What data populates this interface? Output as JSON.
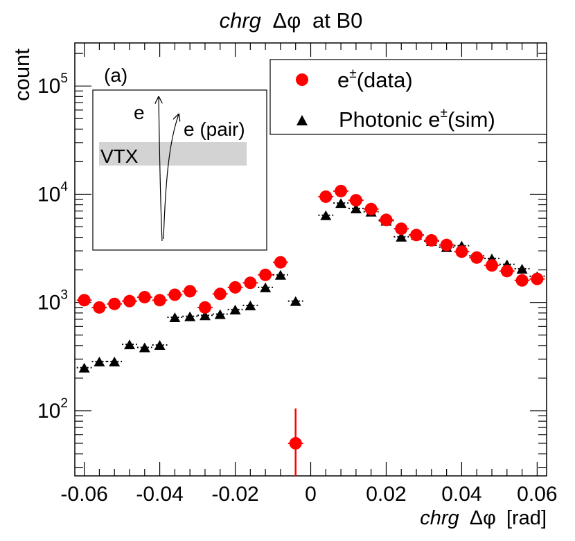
{
  "chart_data": {
    "type": "scatter",
    "title": {
      "italic": "chrg",
      "symbol": "Δφ",
      "rest": "at B0"
    },
    "xlabel": {
      "italic": "chrg",
      "symbol": "Δφ",
      "unit": "[rad]"
    },
    "ylabel": "count",
    "yscale": "log",
    "xlim": [
      -0.0625,
      0.0625
    ],
    "ylim": [
      25,
      250000
    ],
    "x_ticks": [
      {
        "value": -0.06,
        "label": "-0.06"
      },
      {
        "value": -0.04,
        "label": "-0.04"
      },
      {
        "value": -0.02,
        "label": "-0.02"
      },
      {
        "value": 0,
        "label": "0"
      },
      {
        "value": 0.02,
        "label": "0.02"
      },
      {
        "value": 0.04,
        "label": "0.04"
      },
      {
        "value": 0.06,
        "label": "0.06"
      }
    ],
    "y_ticks": [
      {
        "value": 100,
        "base": "10",
        "exp": "2"
      },
      {
        "value": 1000,
        "base": "10",
        "exp": "3"
      },
      {
        "value": 10000,
        "base": "10",
        "exp": "4"
      },
      {
        "value": 100000,
        "base": "10",
        "exp": "5"
      }
    ],
    "bin_half_width": 0.002,
    "series": [
      {
        "name": "e±(data)",
        "legend": {
          "base": "e",
          "sup": "±",
          "text": "(data)"
        },
        "marker": "circle",
        "color": "#ff0000",
        "x": [
          -0.06,
          -0.056,
          -0.052,
          -0.048,
          -0.044,
          -0.04,
          -0.036,
          -0.032,
          -0.028,
          -0.024,
          -0.02,
          -0.016,
          -0.012,
          -0.008,
          -0.004,
          0.0,
          0.004,
          0.008,
          0.012,
          0.016,
          0.02,
          0.024,
          0.028,
          0.032,
          0.036,
          0.04,
          0.044,
          0.048,
          0.052,
          0.056,
          0.06
        ],
        "y": [
          1050,
          900,
          970,
          1030,
          1120,
          1050,
          1180,
          1270,
          900,
          1200,
          1380,
          1520,
          1800,
          2350,
          50,
          null,
          9500,
          10700,
          8800,
          7300,
          5800,
          4800,
          4200,
          3750,
          3400,
          2950,
          2600,
          2200,
          1950,
          1600,
          1650
        ],
        "y_err_low": [
          null,
          null,
          null,
          null,
          null,
          null,
          null,
          null,
          null,
          null,
          null,
          null,
          null,
          null,
          25,
          null,
          null,
          null,
          null,
          null,
          null,
          null,
          null,
          null,
          null,
          null,
          null,
          null,
          null,
          null,
          null
        ],
        "y_err_high": [
          null,
          null,
          null,
          null,
          null,
          null,
          null,
          null,
          null,
          null,
          null,
          null,
          null,
          null,
          105,
          null,
          null,
          null,
          null,
          null,
          null,
          null,
          null,
          null,
          null,
          null,
          null,
          null,
          null,
          null,
          null
        ]
      },
      {
        "name": "Photonic e±(sim)",
        "legend": {
          "base": "Photonic e",
          "sup": "±",
          "text": "(sim)"
        },
        "marker": "triangle",
        "color": "#000000",
        "x": [
          -0.06,
          -0.056,
          -0.052,
          -0.048,
          -0.044,
          -0.04,
          -0.036,
          -0.032,
          -0.028,
          -0.024,
          -0.02,
          -0.016,
          -0.012,
          -0.008,
          -0.004,
          0.0,
          0.004,
          0.008,
          0.012,
          0.016,
          0.02,
          0.024,
          0.028,
          0.032,
          0.036,
          0.04,
          0.044,
          0.048,
          0.052,
          0.056,
          0.06
        ],
        "y": [
          250,
          285,
          285,
          410,
          385,
          405,
          730,
          745,
          760,
          780,
          860,
          940,
          1380,
          1800,
          1030,
          null,
          6400,
          8300,
          7400,
          6900,
          5700,
          4050,
          4200,
          3700,
          3250,
          3350,
          2700,
          2550,
          2250,
          2050,
          1750
        ]
      }
    ],
    "inset": {
      "label": "(a)",
      "track1": "e",
      "track2": "e (pair)",
      "detector": "VTX"
    }
  }
}
